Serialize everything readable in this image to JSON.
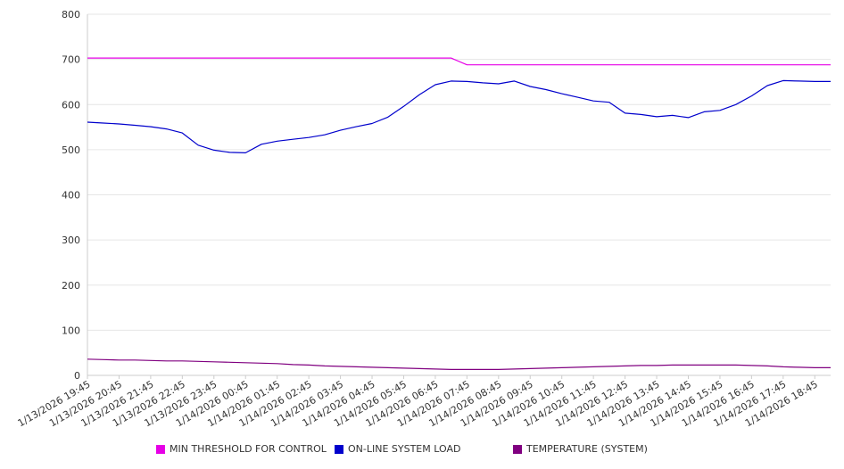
{
  "chart_data": {
    "type": "line",
    "y_ticks": [
      "0",
      "100",
      "200",
      "300",
      "400",
      "500",
      "600",
      "700",
      "800"
    ],
    "ylim": [
      0,
      800
    ],
    "grid": true,
    "legend_placement": "bottom",
    "x_tick_labels": [
      "1/13/2026 19:45",
      "1/13/2026 20:45",
      "1/13/2026 21:45",
      "1/13/2026 22:45",
      "1/13/2026 23:45",
      "1/14/2026 00:45",
      "1/14/2026 01:45",
      "1/14/2026 02:45",
      "1/14/2026 03:45",
      "1/14/2026 04:45",
      "1/14/2026 05:45",
      "1/14/2026 06:45",
      "1/14/2026 07:45",
      "1/14/2026 08:45",
      "1/14/2026 09:45",
      "1/14/2026 10:45",
      "1/14/2026 11:45",
      "1/14/2026 12:45",
      "1/14/2026 13:45",
      "1/14/2026 14:45",
      "1/14/2026 15:45",
      "1/14/2026 16:45",
      "1/14/2026 17:45",
      "1/14/2026 18:45"
    ],
    "x": [
      "1/13/2026 19:45",
      "1/13/2026 20:15",
      "1/13/2026 20:45",
      "1/13/2026 21:15",
      "1/13/2026 21:45",
      "1/13/2026 22:15",
      "1/13/2026 22:45",
      "1/13/2026 23:15",
      "1/13/2026 23:45",
      "1/14/2026 00:15",
      "1/14/2026 00:45",
      "1/14/2026 01:15",
      "1/14/2026 01:45",
      "1/14/2026 02:15",
      "1/14/2026 02:45",
      "1/14/2026 03:15",
      "1/14/2026 03:45",
      "1/14/2026 04:15",
      "1/14/2026 04:45",
      "1/14/2026 05:15",
      "1/14/2026 05:45",
      "1/14/2026 06:15",
      "1/14/2026 06:45",
      "1/14/2026 07:15",
      "1/14/2026 07:45",
      "1/14/2026 08:15",
      "1/14/2026 08:45",
      "1/14/2026 09:15",
      "1/14/2026 09:45",
      "1/14/2026 10:15",
      "1/14/2026 10:45",
      "1/14/2026 11:15",
      "1/14/2026 11:45",
      "1/14/2026 12:15",
      "1/14/2026 12:45",
      "1/14/2026 13:15",
      "1/14/2026 13:45",
      "1/14/2026 14:15",
      "1/14/2026 14:45",
      "1/14/2026 15:15",
      "1/14/2026 15:45",
      "1/14/2026 16:15",
      "1/14/2026 16:45",
      "1/14/2026 17:15",
      "1/14/2026 17:45",
      "1/14/2026 18:15",
      "1/14/2026 18:45",
      "1/14/2026 19:15"
    ],
    "series": [
      {
        "name": "MIN THRESHOLD FOR CONTROL",
        "color": "#e600e6",
        "values": [
          703,
          703,
          703,
          703,
          703,
          703,
          703,
          703,
          703,
          703,
          703,
          703,
          703,
          703,
          703,
          703,
          703,
          703,
          703,
          703,
          703,
          703,
          703,
          703,
          688,
          688,
          688,
          688,
          688,
          688,
          688,
          688,
          688,
          688,
          688,
          688,
          688,
          688,
          688,
          688,
          688,
          688,
          688,
          688,
          688,
          688,
          688,
          688
        ]
      },
      {
        "name": "ON-LINE SYSTEM LOAD",
        "color": "#0000cc",
        "values": [
          561,
          559,
          557,
          554,
          551,
          546,
          537,
          510,
          499,
          494,
          493,
          512,
          519,
          523,
          527,
          533,
          543,
          551,
          558,
          572,
          596,
          622,
          644,
          652,
          651,
          648,
          646,
          652,
          640,
          633,
          624,
          616,
          608,
          605,
          581,
          578,
          573,
          576,
          571,
          584,
          587,
          600,
          619,
          642,
          653,
          652,
          651,
          651
        ]
      },
      {
        "name": "TEMPERATURE (SYSTEM)",
        "color": "#800080",
        "values": [
          36,
          35,
          34,
          34,
          33,
          32,
          32,
          31,
          30,
          29,
          28,
          27,
          26,
          24,
          23,
          21,
          20,
          19,
          18,
          17,
          16,
          15,
          14,
          13,
          13,
          13,
          13,
          14,
          15,
          16,
          17,
          18,
          19,
          20,
          21,
          22,
          22,
          23,
          23,
          23,
          23,
          23,
          22,
          21,
          19,
          18,
          17,
          17
        ]
      }
    ]
  }
}
